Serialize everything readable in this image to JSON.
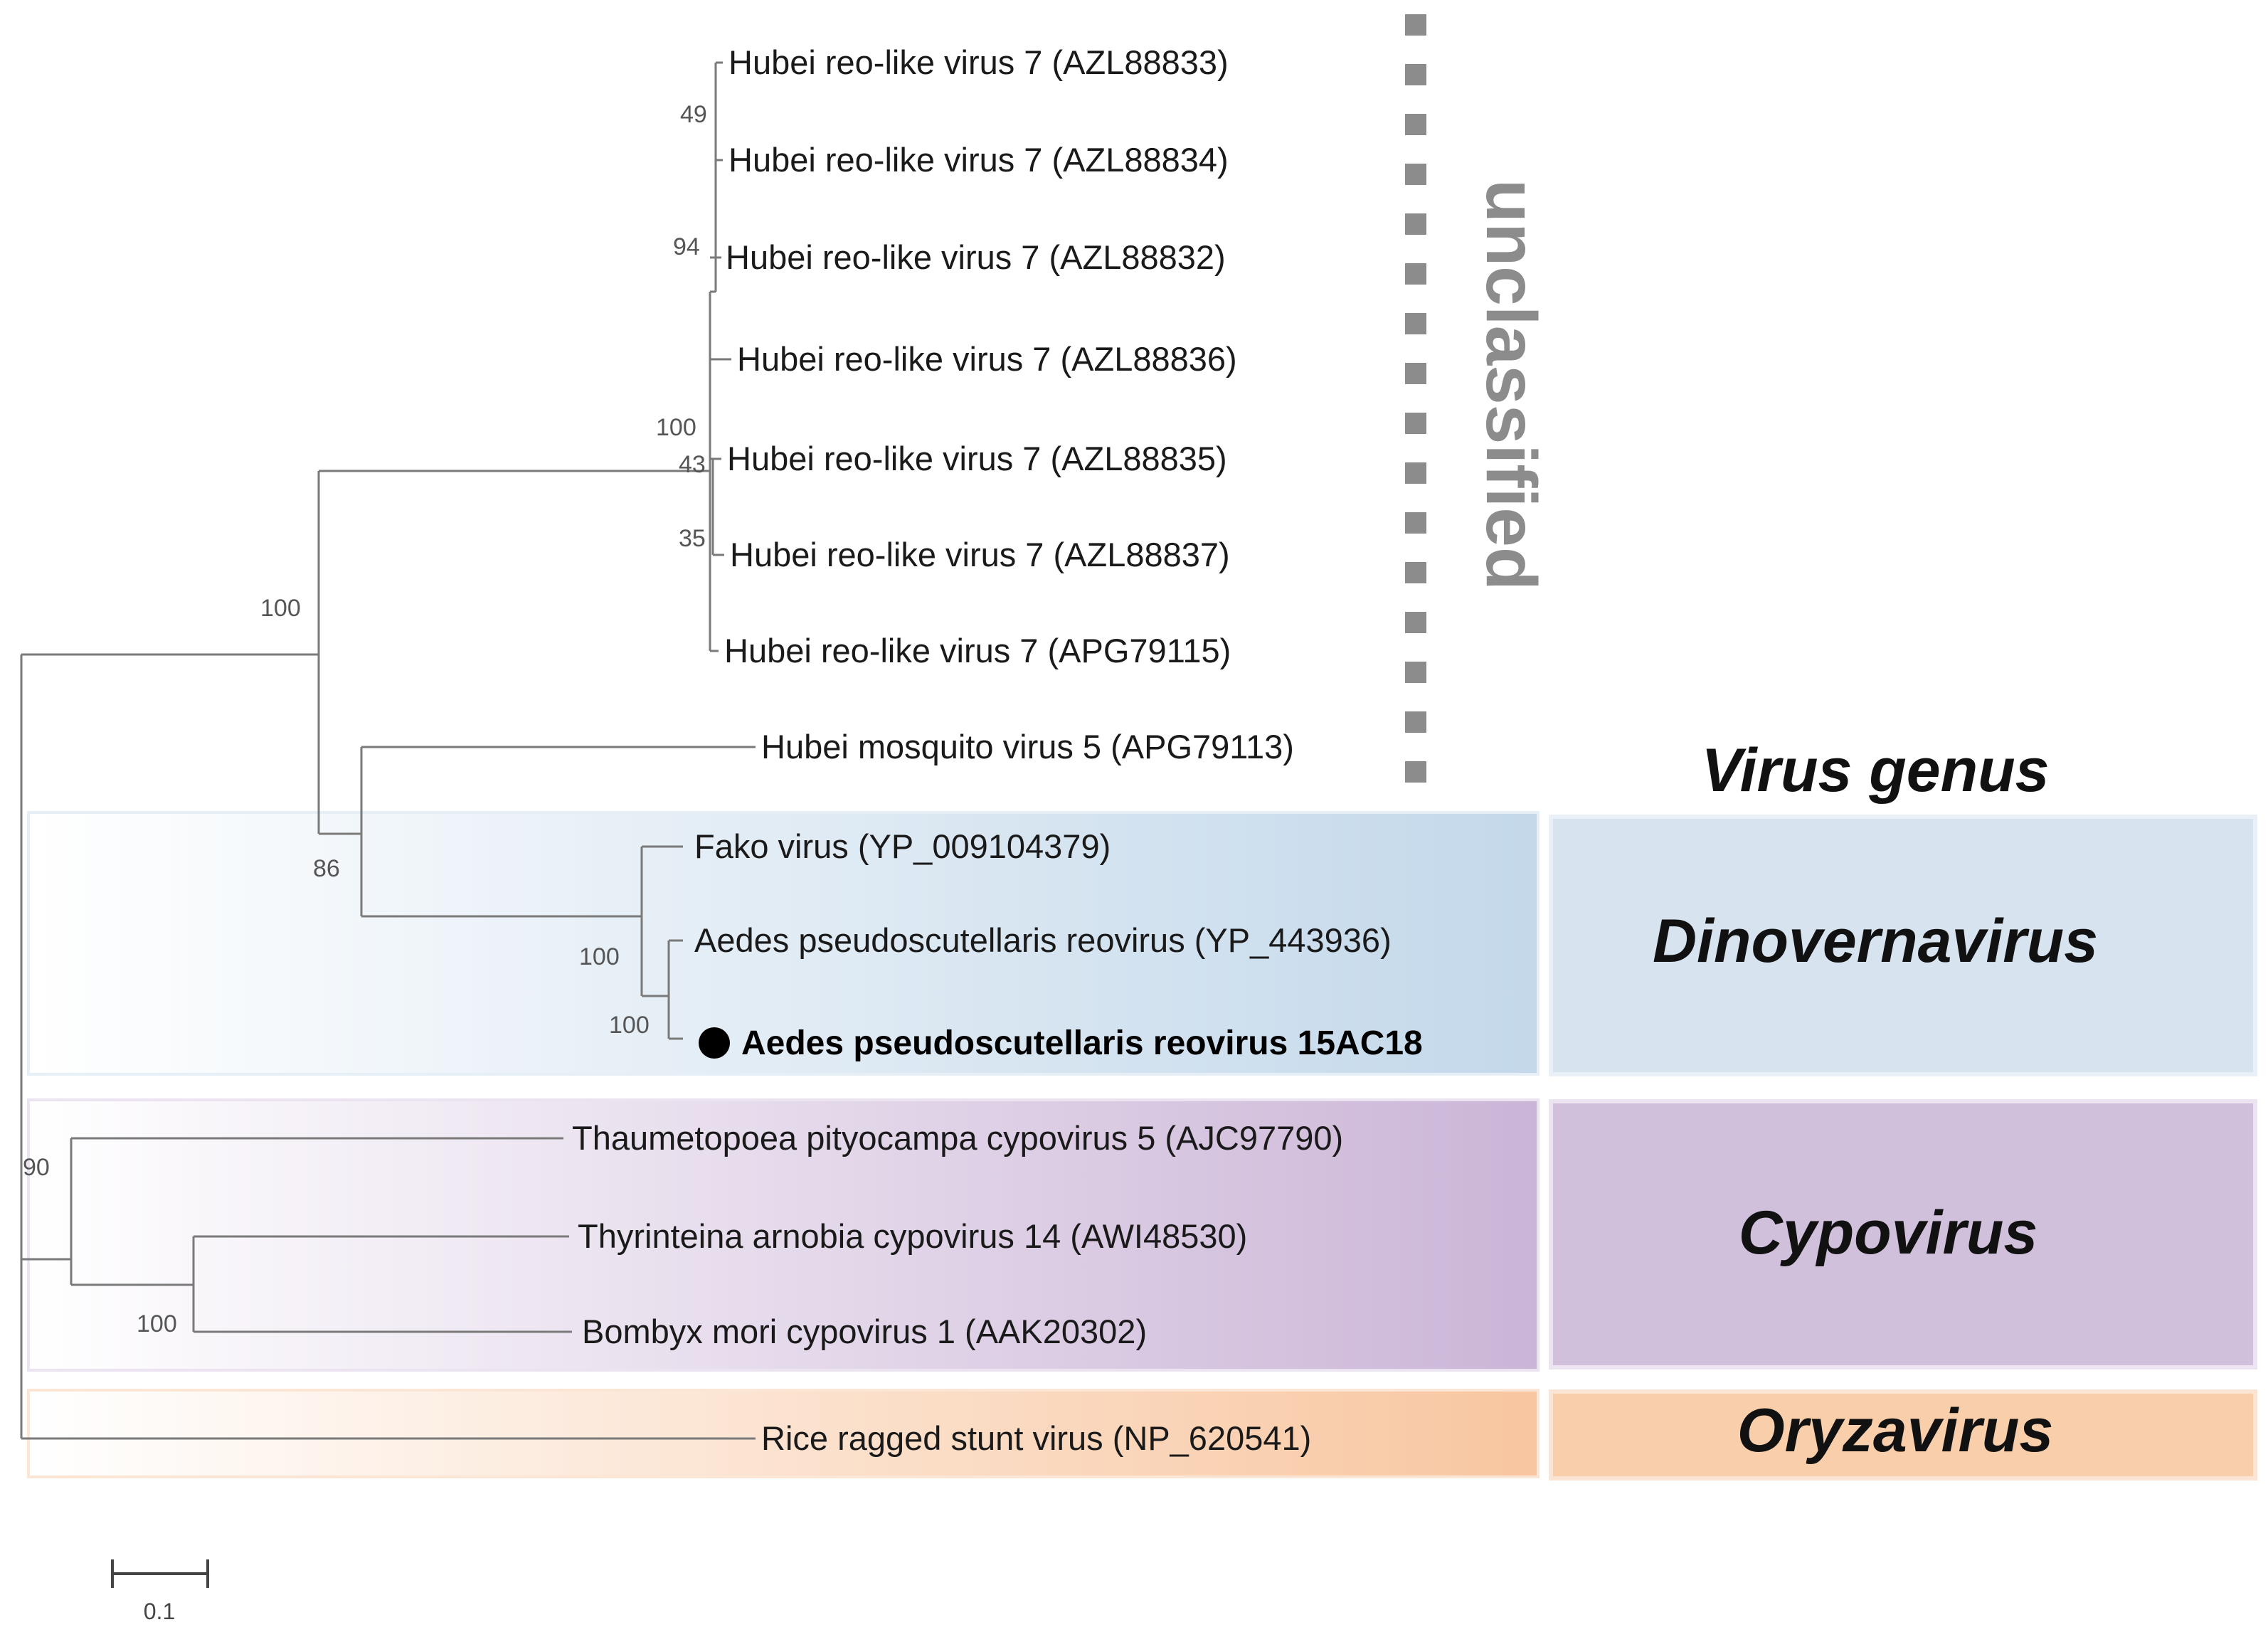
{
  "figure": {
    "title": "Virus genus",
    "unclassified_label": "unclassified",
    "scale_bar_label": "0.1"
  },
  "taxa": [
    {
      "id": "t1",
      "name": "Hubei reo-like virus 7 (AZL88833)",
      "group": "unclassified"
    },
    {
      "id": "t2",
      "name": "Hubei reo-like virus 7 (AZL88834)",
      "group": "unclassified"
    },
    {
      "id": "t3",
      "name": "Hubei reo-like virus 7 (AZL88832)",
      "group": "unclassified"
    },
    {
      "id": "t4",
      "name": "Hubei reo-like virus 7 (AZL88836)",
      "group": "unclassified"
    },
    {
      "id": "t5",
      "name": "Hubei reo-like virus 7 (AZL88835)",
      "group": "unclassified"
    },
    {
      "id": "t6",
      "name": "Hubei reo-like virus 7 (AZL88837)",
      "group": "unclassified"
    },
    {
      "id": "t7",
      "name": "Hubei reo-like virus 7 (APG79115)",
      "group": "unclassified"
    },
    {
      "id": "t8",
      "name": "Hubei mosquito virus 5 (APG79113)",
      "group": "unclassified"
    },
    {
      "id": "t9",
      "name": "Fako virus (YP_009104379)",
      "group": "Dinovernavirus"
    },
    {
      "id": "t10",
      "name": "Aedes pseudoscutellaris reovirus (YP_443936)",
      "group": "Dinovernavirus"
    },
    {
      "id": "t11",
      "name": "Aedes pseudoscutellaris reovirus 15AC18",
      "group": "Dinovernavirus",
      "highlighted": true
    },
    {
      "id": "t12",
      "name": "Thaumetopoea pityocampa cypovirus 5 (AJC97790)",
      "group": "Cypovirus"
    },
    {
      "id": "t13",
      "name": "Thyrinteina arnobia cypovirus 14 (AWI48530)",
      "group": "Cypovirus"
    },
    {
      "id": "t14",
      "name": "Bombyx mori cypovirus 1 (AAK20302)",
      "group": "Cypovirus"
    },
    {
      "id": "t15",
      "name": "Rice ragged stunt virus (NP_620541)",
      "group": "Oryzavirus"
    }
  ],
  "bootstrap_values": [
    {
      "node": "n_hubei_a",
      "value": "49"
    },
    {
      "node": "n_hubei_b",
      "value": "94"
    },
    {
      "node": "n_hubei_clade",
      "value": "100"
    },
    {
      "node": "n_hubei_c",
      "value": "43"
    },
    {
      "node": "n_hubei_d",
      "value": "35"
    },
    {
      "node": "n_unclassified",
      "value": "100"
    },
    {
      "node": "n_mosq_dino",
      "value": "86"
    },
    {
      "node": "n_dino",
      "value": "100"
    },
    {
      "node": "n_apr",
      "value": "100"
    },
    {
      "node": "n_cypo",
      "value": "90"
    },
    {
      "node": "n_cypo_inner",
      "value": "100"
    }
  ],
  "genera": [
    {
      "name": "Dinovernavirus",
      "color": "#d7e4ef"
    },
    {
      "name": "Cypovirus",
      "color": "#d0c0dc"
    },
    {
      "name": "Oryzavirus",
      "color": "#f9cfab"
    }
  ],
  "colors": {
    "branch": "#7a7a7a",
    "unclassified": "#8c8c8c",
    "dino_grad_end": "#c3d8ea",
    "cypo_grad_end": "#cbb5d7",
    "oryza_grad_end": "#f8c6a0",
    "highlight_marker": "#000000"
  }
}
